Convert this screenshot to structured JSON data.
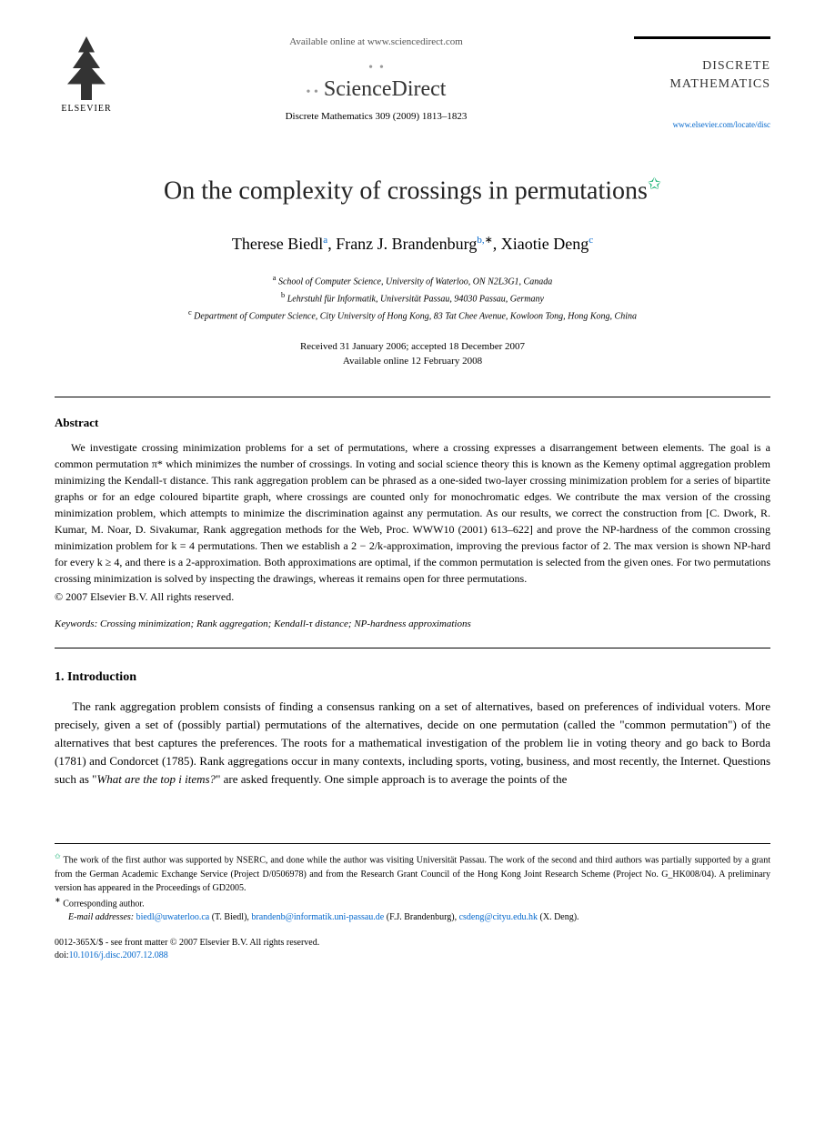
{
  "header": {
    "publisher_name": "ELSEVIER",
    "available_text": "Available online at www.sciencedirect.com",
    "platform_name": "ScienceDirect",
    "citation": "Discrete Mathematics 309 (2009) 1813–1823",
    "journal_name_line1": "DISCRETE",
    "journal_name_line2": "MATHEMATICS",
    "journal_url": "www.elsevier.com/locate/disc"
  },
  "title": "On the complexity of crossings in permutations",
  "authors": {
    "a1_name": "Therese Biedl",
    "a1_sup": "a",
    "a2_name": "Franz J. Brandenburg",
    "a2_sup": "b,",
    "a3_name": "Xiaotie Deng",
    "a3_sup": "c"
  },
  "affiliations": {
    "a": "School of Computer Science, University of Waterloo, ON N2L3G1, Canada",
    "b": "Lehrstuhl für Informatik, Universität Passau, 94030 Passau, Germany",
    "c": "Department of Computer Science, City University of Hong Kong, 83 Tat Chee Avenue, Kowloon Tong, Hong Kong, China"
  },
  "dates": {
    "received": "Received 31 January 2006; accepted 18 December 2007",
    "online": "Available online 12 February 2008"
  },
  "abstract": {
    "heading": "Abstract",
    "body": "We investigate crossing minimization problems for a set of permutations, where a crossing expresses a disarrangement between elements. The goal is a common permutation π* which minimizes the number of crossings. In voting and social science theory this is known as the Kemeny optimal aggregation problem minimizing the Kendall-τ distance. This rank aggregation problem can be phrased as a one-sided two-layer crossing minimization problem for a series of bipartite graphs or for an edge coloured bipartite graph, where crossings are counted only for monochromatic edges. We contribute the max version of the crossing minimization problem, which attempts to minimize the discrimination against any permutation. As our results, we correct the construction from [C. Dwork, R. Kumar, M. Noar, D. Sivakumar, Rank aggregation methods for the Web, Proc. WWW10 (2001) 613–622] and prove the NP-hardness of the common crossing minimization problem for k = 4 permutations. Then we establish a 2 − 2/k-approximation, improving the previous factor of 2. The max version is shown NP-hard for every k ≥ 4, and there is a 2-approximation. Both approximations are optimal, if the common permutation is selected from the given ones. For two permutations crossing minimization is solved by inspecting the drawings, whereas it remains open for three permutations.",
    "copyright": "© 2007 Elsevier B.V. All rights reserved."
  },
  "keywords": {
    "label": "Keywords:",
    "text": " Crossing minimization; Rank aggregation; Kendall-τ distance; NP-hardness approximations"
  },
  "section1": {
    "heading": "1.  Introduction",
    "body": "The rank aggregation problem consists of finding a consensus ranking on a set of alternatives, based on preferences of individual voters. More precisely, given a set of (possibly partial) permutations of the alternatives, decide on one permutation (called the \"common permutation\") of the alternatives that best captures the preferences. The roots for a mathematical investigation of the problem lie in voting theory and go back to Borda (1781) and Condorcet (1785). Rank aggregations occur in many contexts, including sports, voting, business, and most recently, the Internet. Questions such as \"What are the top i items?\" are asked frequently. One simple approach is to average the points of the"
  },
  "footnotes": {
    "funding": "The work of the first author was supported by NSERC, and done while the author was visiting Universität Passau. The work of the second and third authors was partially supported by a grant from the German Academic Exchange Service (Project D/0506978) and from the Research Grant Council of the Hong Kong Joint Research Scheme (Project No. G_HK008/04). A preliminary version has appeared in the Proceedings of GD2005.",
    "corresponding": "Corresponding author.",
    "emails_label": "E-mail addresses:",
    "email1": "biedl@uwaterloo.ca",
    "email1_name": " (T. Biedl), ",
    "email2": "brandenb@informatik.uni-passau.de",
    "email2_name": " (F.J. Brandenburg), ",
    "email3": "csdeng@cityu.edu.hk",
    "email3_name": " (X. Deng)."
  },
  "footer": {
    "issn": "0012-365X/$ - see front matter © 2007 Elsevier B.V. All rights reserved.",
    "doi_label": "doi:",
    "doi": "10.1016/j.disc.2007.12.088"
  }
}
